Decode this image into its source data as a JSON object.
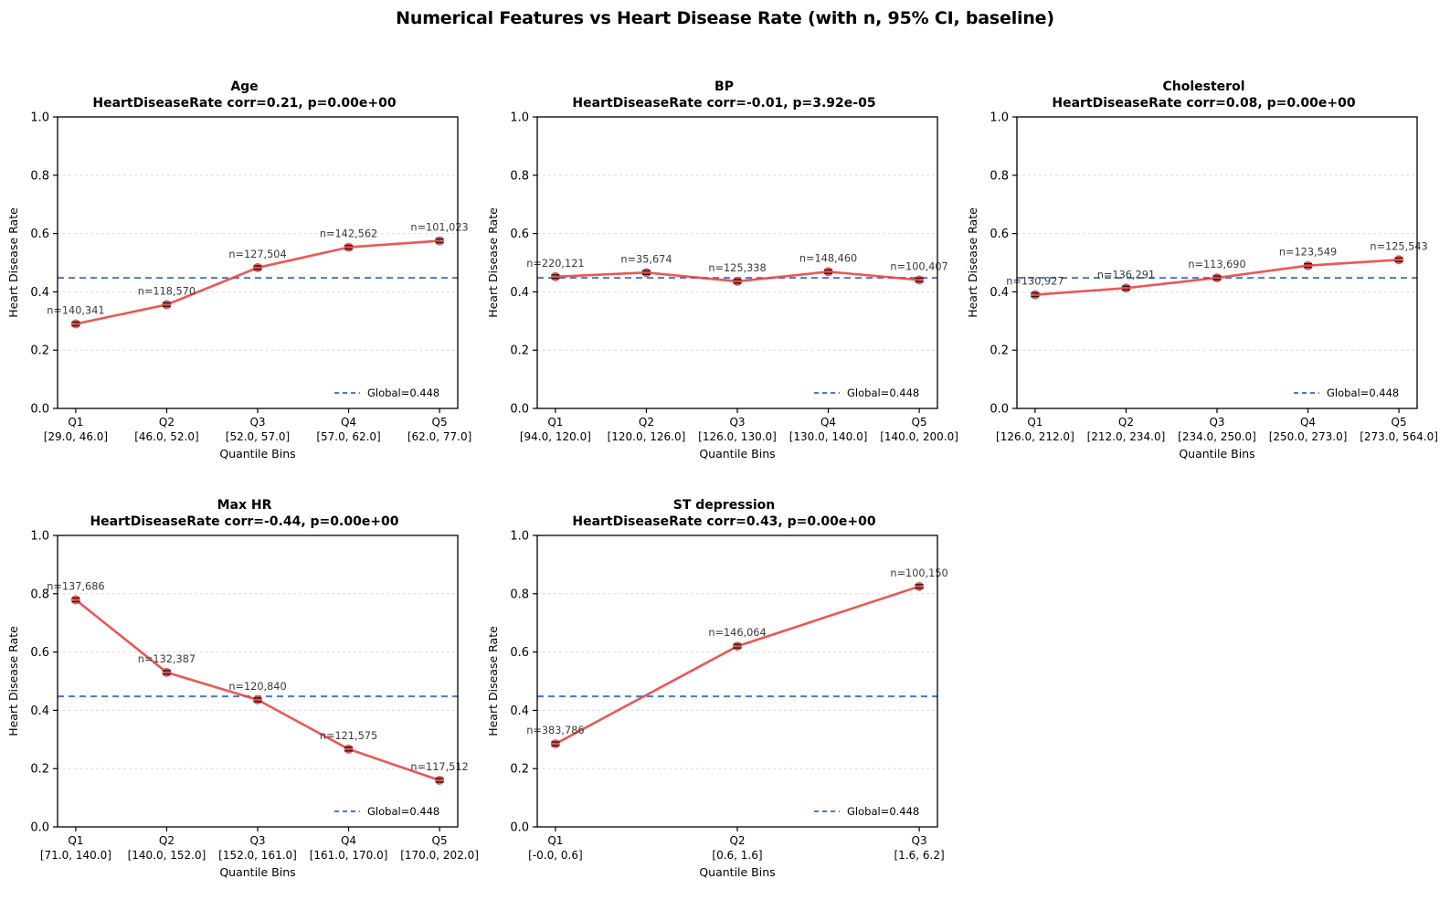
{
  "figure": {
    "suptitle": "Numerical Features vs Heart Disease Rate (with n, 95% CI, baseline)"
  },
  "colors": {
    "line": "#e8403d",
    "marker": "#e8403d",
    "errorbar": "#1c1c1c",
    "baseline": "#4678dd",
    "grid": "#dcdcdc",
    "annotation": "#3a3a3a",
    "spine": "#000000"
  },
  "chart_data": [
    {
      "type": "line",
      "title": "Age",
      "subtitle": "HeartDiseaseRate corr=0.21, p=0.00e+00",
      "categories": [
        "Q1",
        "Q2",
        "Q3",
        "Q4",
        "Q5"
      ],
      "ranges": [
        "[29.0, 46.0]",
        "[46.0, 52.0]",
        "[52.0, 57.0]",
        "[57.0, 62.0]",
        "[62.0, 77.0]"
      ],
      "values": [
        0.29,
        0.356,
        0.483,
        0.553,
        0.575
      ],
      "n_labels": [
        "n=140,341",
        "n=118,570",
        "n=127,504",
        "n=142,562",
        "n=101,023"
      ],
      "baseline": 0.448,
      "legend": "Global=0.448",
      "xlabel": "Quantile Bins",
      "ylabel": "Heart Disease Rate",
      "ylim": [
        0,
        1
      ],
      "yticks": [
        0.0,
        0.2,
        0.4,
        0.6,
        0.8,
        1.0
      ]
    },
    {
      "type": "line",
      "title": "BP",
      "subtitle": "HeartDiseaseRate corr=-0.01, p=3.92e-05",
      "categories": [
        "Q1",
        "Q2",
        "Q3",
        "Q4",
        "Q5"
      ],
      "ranges": [
        "[94.0, 120.0]",
        "[120.0, 126.0]",
        "[126.0, 130.0]",
        "[130.0, 140.0]",
        "[140.0, 200.0]"
      ],
      "values": [
        0.452,
        0.466,
        0.436,
        0.469,
        0.441
      ],
      "n_labels": [
        "n=220,121",
        "n=35,674",
        "n=125,338",
        "n=148,460",
        "n=100,407"
      ],
      "baseline": 0.448,
      "legend": "Global=0.448",
      "xlabel": "Quantile Bins",
      "ylabel": "Heart Disease Rate",
      "ylim": [
        0,
        1
      ],
      "yticks": [
        0.0,
        0.2,
        0.4,
        0.6,
        0.8,
        1.0
      ]
    },
    {
      "type": "line",
      "title": "Cholesterol",
      "subtitle": "HeartDiseaseRate corr=0.08, p=0.00e+00",
      "categories": [
        "Q1",
        "Q2",
        "Q3",
        "Q4",
        "Q5"
      ],
      "ranges": [
        "[126.0, 212.0]",
        "[212.0, 234.0]",
        "[234.0, 250.0]",
        "[250.0, 273.0]",
        "[273.0, 564.0]"
      ],
      "values": [
        0.39,
        0.413,
        0.448,
        0.49,
        0.51
      ],
      "n_labels": [
        "n=130,927",
        "n=136,291",
        "n=113,690",
        "n=123,549",
        "n=125,543"
      ],
      "baseline": 0.448,
      "legend": "Global=0.448",
      "xlabel": "Quantile Bins",
      "ylabel": "Heart Disease Rate",
      "ylim": [
        0,
        1
      ],
      "yticks": [
        0.0,
        0.2,
        0.4,
        0.6,
        0.8,
        1.0
      ]
    },
    {
      "type": "line",
      "title": "Max HR",
      "subtitle": "HeartDiseaseRate corr=-0.44, p=0.00e+00",
      "categories": [
        "Q1",
        "Q2",
        "Q3",
        "Q4",
        "Q5"
      ],
      "ranges": [
        "[71.0, 140.0]",
        "[140.0, 152.0]",
        "[152.0, 161.0]",
        "[161.0, 170.0]",
        "[170.0, 202.0]"
      ],
      "values": [
        0.779,
        0.53,
        0.436,
        0.267,
        0.16
      ],
      "n_labels": [
        "n=137,686",
        "n=132,387",
        "n=120,840",
        "n=121,575",
        "n=117,512"
      ],
      "baseline": 0.448,
      "legend": "Global=0.448",
      "xlabel": "Quantile Bins",
      "ylabel": "Heart Disease Rate",
      "ylim": [
        0,
        1
      ],
      "yticks": [
        0.0,
        0.2,
        0.4,
        0.6,
        0.8,
        1.0
      ]
    },
    {
      "type": "line",
      "title": "ST depression",
      "subtitle": "HeartDiseaseRate corr=0.43, p=0.00e+00",
      "categories": [
        "Q1",
        "Q2",
        "Q3"
      ],
      "ranges": [
        "[-0.0, 0.6]",
        "[0.6, 1.6]",
        "[1.6, 6.2]"
      ],
      "values": [
        0.285,
        0.62,
        0.825
      ],
      "n_labels": [
        "n=383,786",
        "n=146,064",
        "n=100,150"
      ],
      "baseline": 0.448,
      "legend": "Global=0.448",
      "xlabel": "Quantile Bins",
      "ylabel": "Heart Disease Rate",
      "ylim": [
        0,
        1
      ],
      "yticks": [
        0.0,
        0.2,
        0.4,
        0.6,
        0.8,
        1.0
      ]
    }
  ]
}
